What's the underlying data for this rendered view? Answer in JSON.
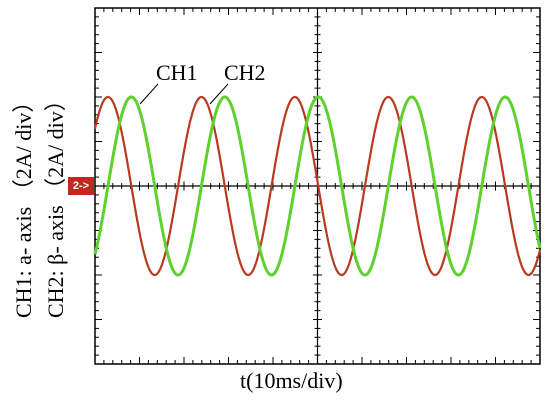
{
  "chart_data": {
    "type": "line",
    "xlabel": "t(10ms/div)",
    "ylabel": {
      "ch1": "CH1: a- axis （2A/ div）",
      "ch2": "CH2: β- axis （2A/ div）"
    },
    "x_unit": "ms",
    "y_unit": "div",
    "grid": true,
    "divisions": {
      "x": 10,
      "y": 8
    },
    "xlim": [
      0,
      100
    ],
    "ylim": [
      -4,
      4
    ],
    "amplitude_div": 2,
    "period_ms": 21,
    "channel_marker": "2->",
    "series": [
      {
        "name": "CH1",
        "color": "#b83a20",
        "phase_deg": 40
      },
      {
        "name": "CH2",
        "color": "#5fd12f",
        "phase_deg": -50
      }
    ],
    "annotations": [
      "CH1",
      "CH2"
    ]
  }
}
